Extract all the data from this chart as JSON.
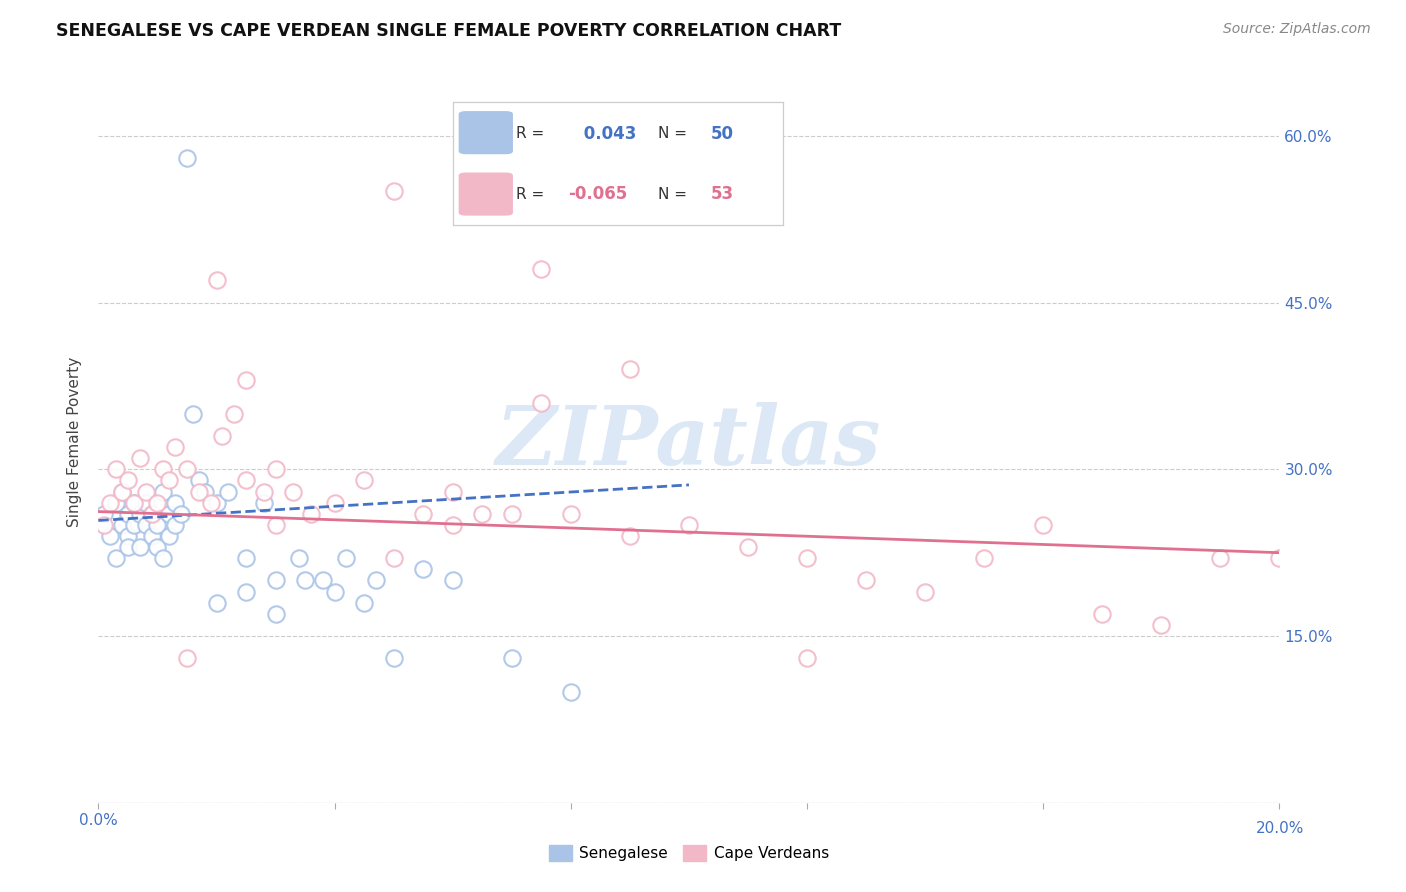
{
  "title": "SENEGALESE VS CAPE VERDEAN SINGLE FEMALE POVERTY CORRELATION CHART",
  "source": "Source: ZipAtlas.com",
  "ylabel": "Single Female Poverty",
  "x_min": 0.0,
  "x_max": 0.2,
  "y_min": 0.0,
  "y_max": 0.65,
  "x_ticks": [
    0.0,
    0.04,
    0.08,
    0.12,
    0.16,
    0.2
  ],
  "y_ticks": [
    0.0,
    0.15,
    0.3,
    0.45,
    0.6
  ],
  "right_labels": [
    "",
    "15.0%",
    "30.0%",
    "45.0%",
    "60.0%"
  ],
  "legend_R1": " 0.043",
  "legend_N1": "50",
  "legend_R2": "-0.065",
  "legend_N2": "53",
  "color_blue": "#aac4e8",
  "color_pink": "#f2b8c8",
  "color_blue_line": "#4472c4",
  "color_pink_line": "#e07090",
  "color_blue_text": "#4472c4",
  "color_pink_text": "#e07090",
  "grid_color": "#cccccc",
  "watermark_color": "#dce8f5",
  "sen_x": [
    0.001,
    0.002,
    0.003,
    0.003,
    0.004,
    0.004,
    0.005,
    0.005,
    0.005,
    0.006,
    0.006,
    0.007,
    0.007,
    0.008,
    0.008,
    0.009,
    0.009,
    0.01,
    0.01,
    0.011,
    0.011,
    0.012,
    0.012,
    0.013,
    0.013,
    0.014,
    0.015,
    0.016,
    0.017,
    0.018,
    0.02,
    0.022,
    0.025,
    0.028,
    0.03,
    0.034,
    0.038,
    0.042,
    0.047,
    0.055,
    0.02,
    0.025,
    0.03,
    0.035,
    0.04,
    0.045,
    0.05,
    0.06,
    0.07,
    0.08
  ],
  "sen_y": [
    0.26,
    0.24,
    0.27,
    0.22,
    0.25,
    0.28,
    0.26,
    0.24,
    0.23,
    0.27,
    0.25,
    0.26,
    0.23,
    0.25,
    0.27,
    0.24,
    0.26,
    0.25,
    0.23,
    0.28,
    0.22,
    0.26,
    0.24,
    0.27,
    0.25,
    0.26,
    0.58,
    0.35,
    0.29,
    0.28,
    0.27,
    0.28,
    0.22,
    0.27,
    0.2,
    0.22,
    0.2,
    0.22,
    0.2,
    0.21,
    0.18,
    0.19,
    0.17,
    0.2,
    0.19,
    0.18,
    0.13,
    0.2,
    0.13,
    0.1
  ],
  "cv_x": [
    0.001,
    0.002,
    0.003,
    0.004,
    0.005,
    0.006,
    0.007,
    0.008,
    0.009,
    0.01,
    0.011,
    0.012,
    0.013,
    0.015,
    0.017,
    0.019,
    0.021,
    0.023,
    0.025,
    0.028,
    0.03,
    0.033,
    0.036,
    0.04,
    0.045,
    0.05,
    0.055,
    0.06,
    0.065,
    0.07,
    0.075,
    0.08,
    0.09,
    0.1,
    0.11,
    0.12,
    0.13,
    0.14,
    0.15,
    0.16,
    0.17,
    0.18,
    0.19,
    0.2,
    0.075,
    0.09,
    0.05,
    0.12,
    0.06,
    0.02,
    0.025,
    0.03,
    0.015
  ],
  "cv_y": [
    0.25,
    0.27,
    0.3,
    0.28,
    0.29,
    0.27,
    0.31,
    0.28,
    0.26,
    0.27,
    0.3,
    0.29,
    0.32,
    0.3,
    0.28,
    0.27,
    0.33,
    0.35,
    0.29,
    0.28,
    0.3,
    0.28,
    0.26,
    0.27,
    0.29,
    0.55,
    0.26,
    0.28,
    0.26,
    0.26,
    0.36,
    0.26,
    0.24,
    0.25,
    0.23,
    0.22,
    0.2,
    0.19,
    0.22,
    0.25,
    0.17,
    0.16,
    0.22,
    0.22,
    0.48,
    0.39,
    0.22,
    0.13,
    0.25,
    0.47,
    0.38,
    0.25,
    0.13
  ]
}
